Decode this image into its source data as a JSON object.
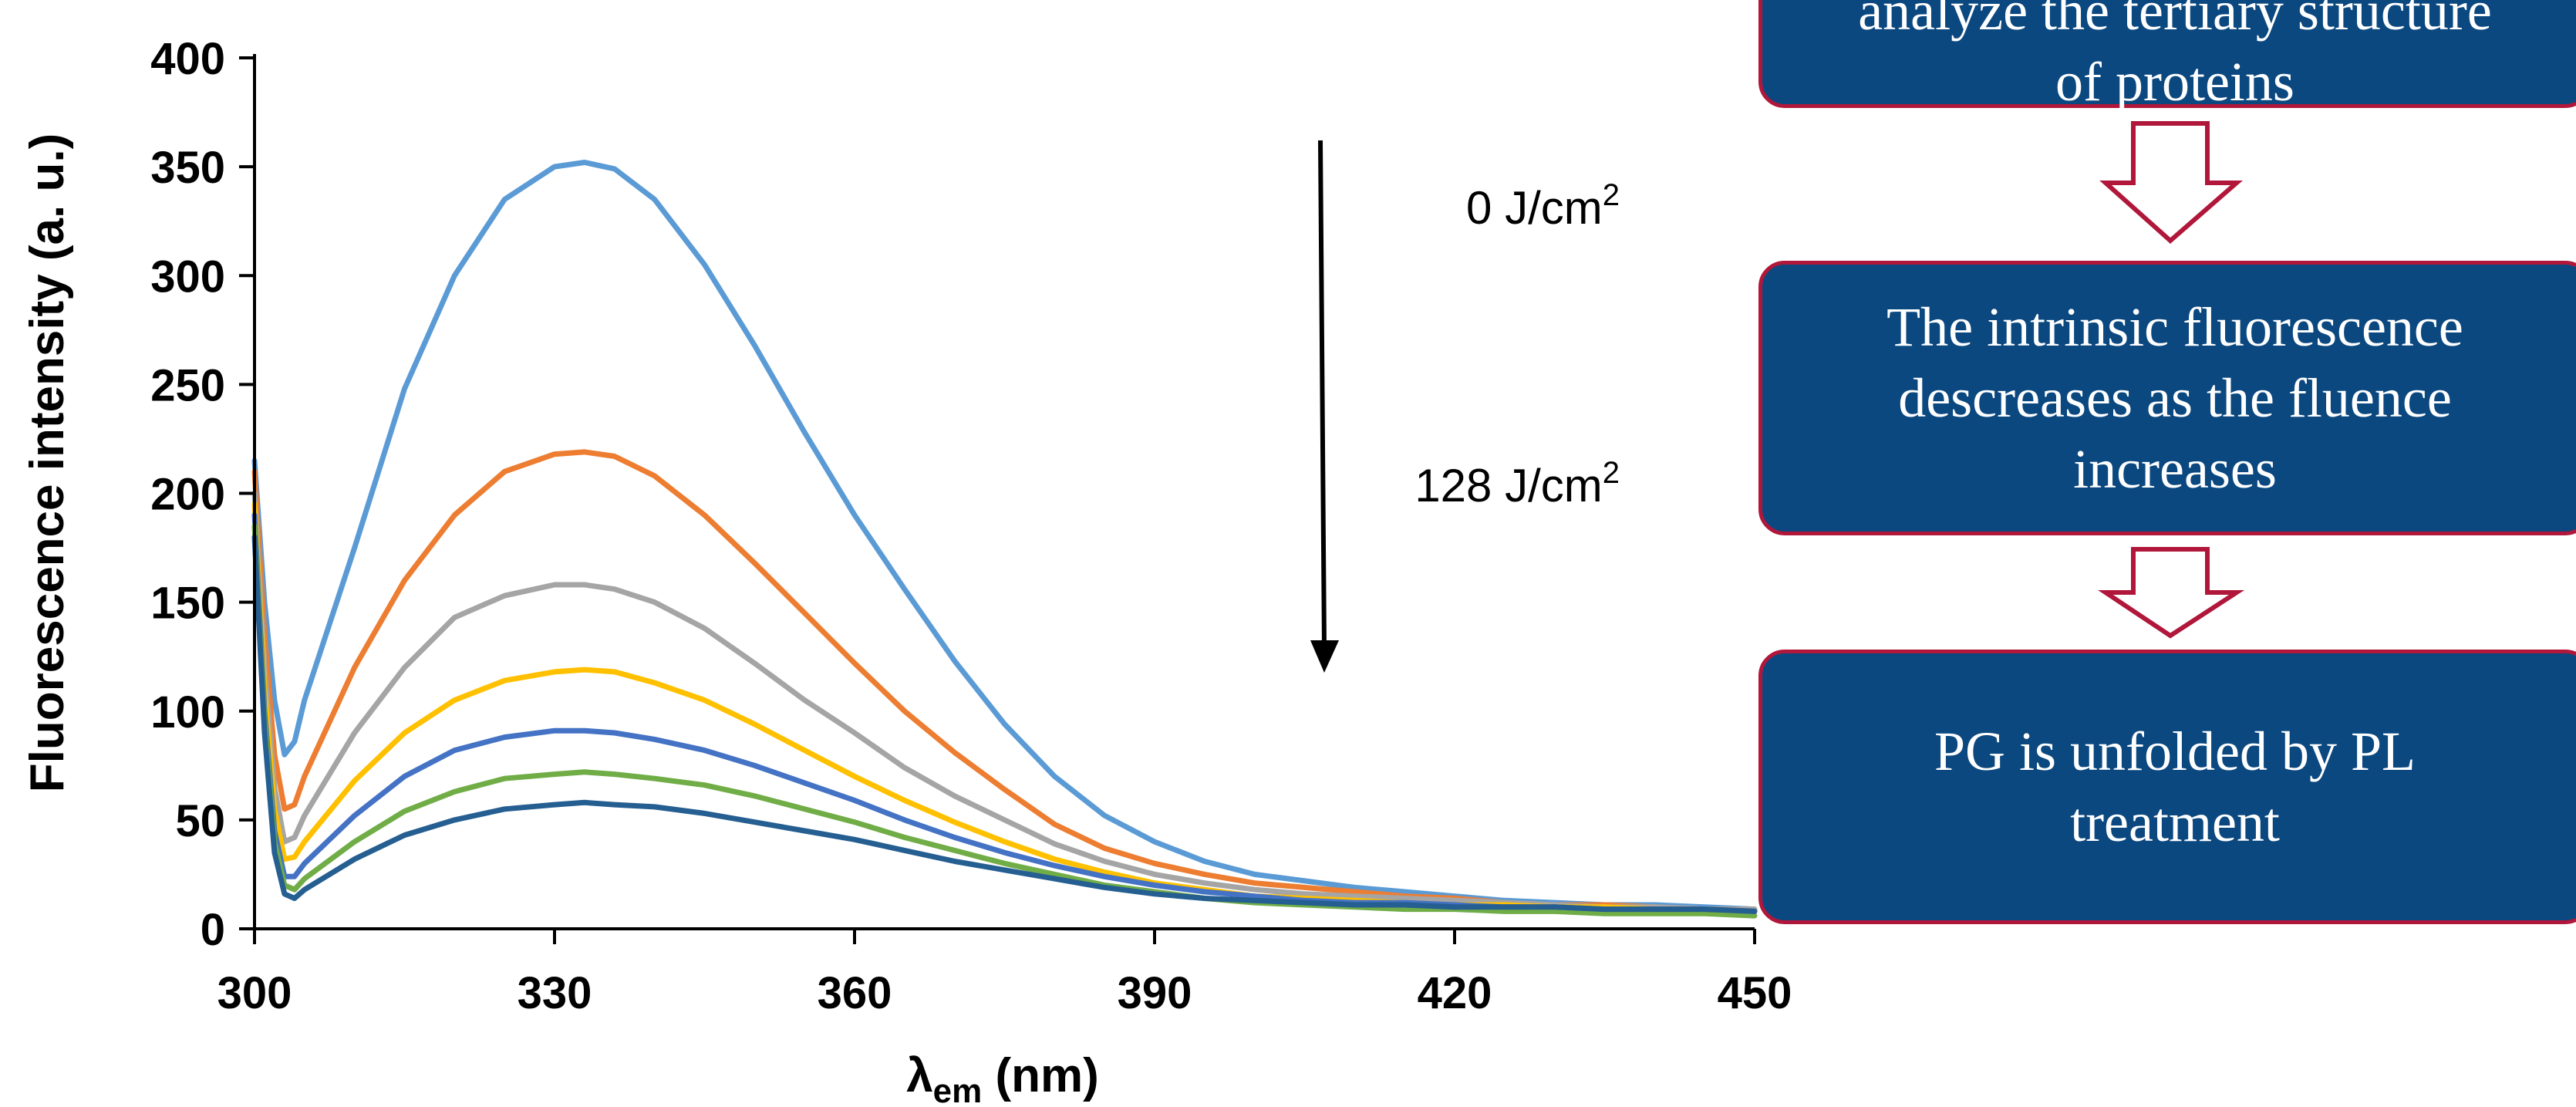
{
  "chart_data": {
    "type": "line",
    "title": "",
    "xlabel": "λem (nm)",
    "xlabel_main": "λ",
    "xlabel_sub": "em",
    "xlabel_unit": " (nm)",
    "ylabel": "Fluorescence intensity (a. u.)",
    "xlim": [
      300,
      450
    ],
    "ylim": [
      0,
      400
    ],
    "xticks": [
      "300",
      "330",
      "360",
      "390",
      "420",
      "450"
    ],
    "yticks": [
      "0",
      "50",
      "100",
      "150",
      "200",
      "250",
      "300",
      "350",
      "400"
    ],
    "grid": false,
    "legend": "none",
    "x": [
      300,
      301,
      302,
      303,
      304,
      305,
      310,
      315,
      320,
      325,
      330,
      333,
      336,
      340,
      345,
      350,
      355,
      360,
      365,
      370,
      375,
      380,
      385,
      390,
      395,
      400,
      405,
      410,
      415,
      420,
      425,
      430,
      435,
      440,
      445,
      450
    ],
    "series": [
      {
        "color": "#5b9bd5",
        "values": [
          215,
          150,
          105,
          80,
          86,
          105,
          175,
          248,
          300,
          335,
          350,
          352,
          349,
          335,
          305,
          268,
          228,
          190,
          156,
          123,
          94,
          70,
          52,
          40,
          31,
          25,
          22,
          19,
          17,
          15,
          13,
          12,
          11,
          11,
          10,
          9
        ]
      },
      {
        "color": "#ed7d31",
        "values": [
          210,
          135,
          80,
          55,
          57,
          70,
          120,
          160,
          190,
          210,
          218,
          219,
          217,
          208,
          190,
          168,
          145,
          122,
          100,
          81,
          64,
          48,
          37,
          30,
          25,
          21,
          19,
          17,
          15,
          14,
          12,
          11,
          11,
          10,
          9,
          9
        ]
      },
      {
        "color": "#a5a5a5",
        "values": [
          200,
          120,
          65,
          40,
          42,
          52,
          90,
          120,
          143,
          153,
          158,
          158,
          156,
          150,
          138,
          122,
          105,
          90,
          74,
          61,
          50,
          39,
          31,
          25,
          21,
          18,
          16,
          15,
          14,
          13,
          12,
          11,
          10,
          10,
          9,
          9
        ]
      },
      {
        "color": "#ffc000",
        "values": [
          195,
          110,
          55,
          32,
          33,
          40,
          68,
          90,
          105,
          114,
          118,
          119,
          118,
          113,
          105,
          94,
          82,
          70,
          59,
          49,
          40,
          32,
          26,
          21,
          18,
          15,
          14,
          13,
          12,
          11,
          11,
          10,
          10,
          9,
          9,
          8
        ]
      },
      {
        "color": "#4472c4",
        "values": [
          190,
          100,
          45,
          24,
          24,
          30,
          52,
          70,
          82,
          88,
          91,
          91,
          90,
          87,
          82,
          75,
          67,
          59,
          50,
          42,
          35,
          29,
          24,
          20,
          17,
          15,
          13,
          12,
          12,
          11,
          10,
          10,
          9,
          9,
          9,
          8
        ]
      },
      {
        "color": "#70ad47",
        "values": [
          185,
          95,
          40,
          20,
          18,
          23,
          40,
          54,
          63,
          69,
          71,
          72,
          71,
          69,
          66,
          61,
          55,
          49,
          42,
          36,
          30,
          25,
          20,
          17,
          14,
          12,
          11,
          10,
          9,
          9,
          8,
          8,
          7,
          7,
          7,
          6
        ]
      },
      {
        "color": "#255e91",
        "values": [
          180,
          90,
          35,
          16,
          14,
          18,
          32,
          43,
          50,
          55,
          57,
          58,
          57,
          56,
          53,
          49,
          45,
          41,
          36,
          31,
          27,
          23,
          19,
          16,
          14,
          13,
          12,
          11,
          11,
          10,
          10,
          10,
          9,
          9,
          9,
          8
        ]
      }
    ],
    "annotations": {
      "top": {
        "value": "0 J/cm",
        "sup": "2"
      },
      "bottom": {
        "value": "128 J/cm",
        "sup": "2"
      }
    }
  },
  "flowchart": {
    "box1": [
      "analyze the tertiary structure",
      "of proteins"
    ],
    "box2": [
      "The intrinsic fluorescence",
      "descreases as the fluence",
      "increases"
    ],
    "box3": [
      "PG is unfolded by PL",
      "treatment"
    ]
  }
}
